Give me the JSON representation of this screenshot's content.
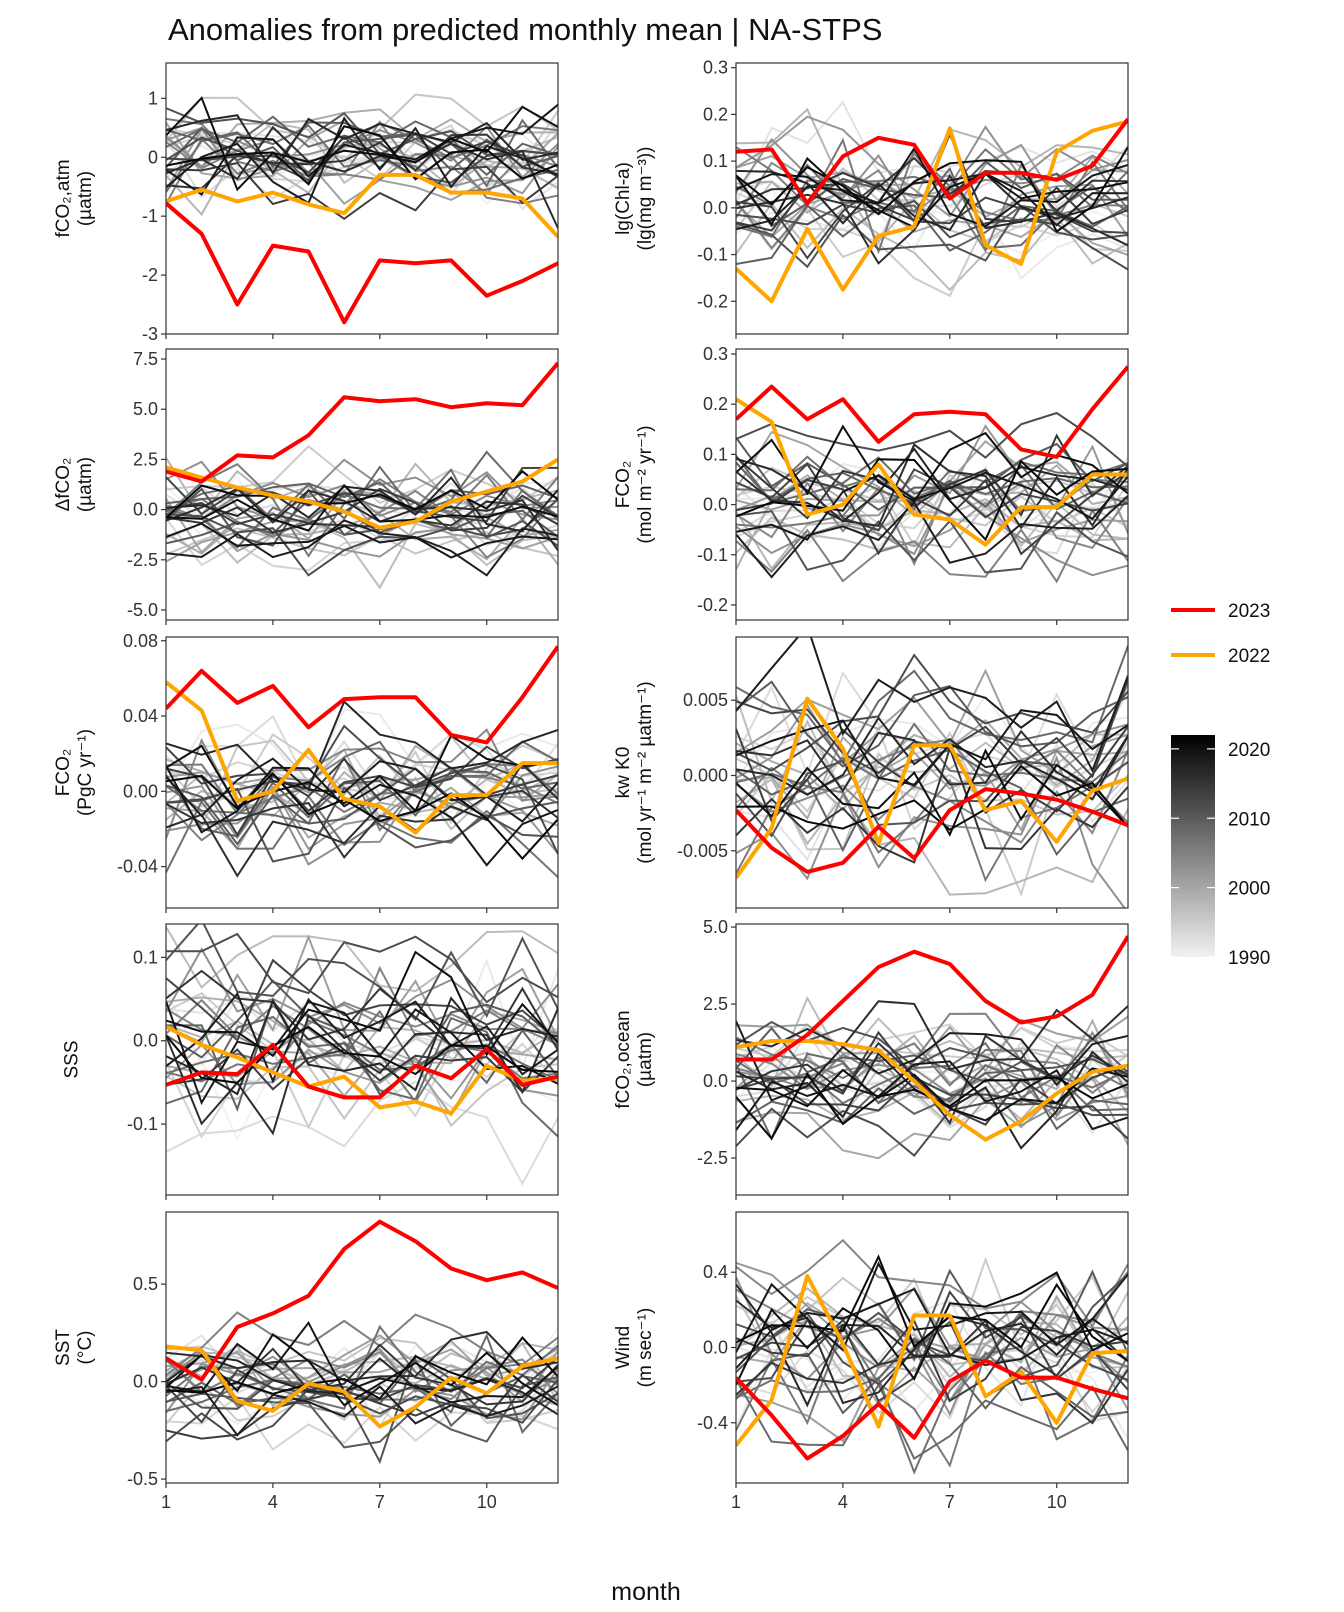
{
  "title": "Anomalies from predicted monthly mean | NA-STPS",
  "x_axis_title": "month",
  "x_ticks": [
    1,
    4,
    7,
    10
  ],
  "legend": {
    "highlight": [
      {
        "name": "2023",
        "color": "#ff0000"
      },
      {
        "name": "2022",
        "color": "#ffa500"
      }
    ],
    "colorbar": {
      "min": 1990,
      "max": 2022,
      "ticks": [
        1990,
        2000,
        2010,
        2020
      ],
      "from_color": "#f2f2f2",
      "to_color": "#000000"
    }
  },
  "chart_data": [
    {
      "type": "line",
      "ylabel": [
        "fCO₂,atm",
        "(µatm)"
      ],
      "ylim": [
        -3.0,
        1.6
      ],
      "yticks": [
        -3,
        -2,
        -1,
        0,
        1
      ],
      "ytick_labels": [
        "-3",
        "-2",
        "-1",
        "0",
        "1"
      ],
      "x": [
        1,
        2,
        3,
        4,
        5,
        6,
        7,
        8,
        9,
        10,
        11,
        12
      ],
      "series": [
        {
          "name": "2023",
          "values": [
            -0.78,
            -1.3,
            -2.5,
            -1.5,
            -1.6,
            -2.8,
            -1.75,
            -1.8,
            -1.75,
            -2.35,
            -2.1,
            -1.8
          ]
        },
        {
          "name": "2022",
          "values": [
            -0.75,
            -0.55,
            -0.75,
            -0.6,
            -0.8,
            -0.95,
            -0.3,
            -0.3,
            -0.6,
            -0.6,
            -0.7,
            -1.35
          ]
        }
      ],
      "background": {
        "years": [
          1990,
          2021
        ],
        "sd": 0.6,
        "trend": 0.0
      }
    },
    {
      "type": "line",
      "ylabel": [
        "lg(Chl-a)",
        "(lg(mg m⁻³))"
      ],
      "ylim": [
        -0.27,
        0.31
      ],
      "yticks": [
        -0.2,
        -0.1,
        0.0,
        0.1,
        0.2,
        0.3
      ],
      "ytick_labels": [
        "-0.2",
        "-0.1",
        "0.0",
        "0.1",
        "0.2",
        "0.3"
      ],
      "x": [
        1,
        2,
        3,
        4,
        5,
        6,
        7,
        8,
        9,
        10,
        11,
        12
      ],
      "series": [
        {
          "name": "2023",
          "values": [
            0.12,
            0.125,
            0.01,
            0.11,
            0.15,
            0.135,
            0.02,
            0.075,
            0.075,
            0.06,
            0.09,
            0.19
          ]
        },
        {
          "name": "2022",
          "values": [
            -0.13,
            -0.2,
            -0.045,
            -0.175,
            -0.06,
            -0.04,
            0.17,
            -0.08,
            -0.12,
            0.12,
            0.165,
            0.185
          ]
        }
      ],
      "background": {
        "years": [
          1990,
          2021
        ],
        "sd": 0.09,
        "trend": 0.0
      }
    },
    {
      "type": "line",
      "ylabel": [
        "ΔfCO₂",
        "(µatm)"
      ],
      "ylim": [
        -5.5,
        8.0
      ],
      "yticks": [
        -5.0,
        -2.5,
        0.0,
        2.5,
        5.0,
        7.5
      ],
      "ytick_labels": [
        "-5.0",
        "-2.5",
        "0.0",
        "2.5",
        "5.0",
        "7.5"
      ],
      "x": [
        1,
        2,
        3,
        4,
        5,
        6,
        7,
        8,
        9,
        10,
        11,
        12
      ],
      "series": [
        {
          "name": "2023",
          "values": [
            1.9,
            1.4,
            2.7,
            2.6,
            3.7,
            5.6,
            5.4,
            5.5,
            5.1,
            5.3,
            5.2,
            7.3
          ]
        },
        {
          "name": "2022",
          "values": [
            2.1,
            1.6,
            1.1,
            0.7,
            0.4,
            -0.1,
            -0.9,
            -0.6,
            0.4,
            0.9,
            1.4,
            2.5
          ]
        }
      ],
      "background": {
        "years": [
          1990,
          2021
        ],
        "sd": 1.5,
        "trend": 0.0
      }
    },
    {
      "type": "line",
      "ylabel": [
        "FCO₂",
        "(mol m⁻² yr⁻¹)"
      ],
      "ylim": [
        -0.23,
        0.31
      ],
      "yticks": [
        -0.2,
        -0.1,
        0.0,
        0.1,
        0.2,
        0.3
      ],
      "ytick_labels": [
        "-0.2",
        "-0.1",
        "0.0",
        "0.1",
        "0.2",
        "0.3"
      ],
      "x": [
        1,
        2,
        3,
        4,
        5,
        6,
        7,
        8,
        9,
        10,
        11,
        12
      ],
      "series": [
        {
          "name": "2023",
          "values": [
            0.17,
            0.235,
            0.17,
            0.21,
            0.125,
            0.18,
            0.185,
            0.18,
            0.11,
            0.095,
            0.19,
            0.275
          ]
        },
        {
          "name": "2022",
          "values": [
            0.21,
            0.165,
            -0.02,
            0.0,
            0.08,
            -0.02,
            -0.03,
            -0.08,
            -0.005,
            -0.005,
            0.06,
            0.06
          ]
        }
      ],
      "background": {
        "years": [
          1990,
          2021
        ],
        "sd": 0.08,
        "trend": 0.0
      }
    },
    {
      "type": "line",
      "ylabel": [
        "FCO₂",
        "(PgC yr⁻¹)"
      ],
      "ylim": [
        -0.062,
        0.082
      ],
      "yticks": [
        -0.04,
        0.0,
        0.04,
        0.08
      ],
      "ytick_labels": [
        "-0.04",
        "0.00",
        "0.04",
        "0.08"
      ],
      "x": [
        1,
        2,
        3,
        4,
        5,
        6,
        7,
        8,
        9,
        10,
        11,
        12
      ],
      "series": [
        {
          "name": "2023",
          "values": [
            0.044,
            0.064,
            0.047,
            0.056,
            0.034,
            0.049,
            0.05,
            0.05,
            0.03,
            0.026,
            0.05,
            0.077
          ]
        },
        {
          "name": "2022",
          "values": [
            0.058,
            0.043,
            -0.005,
            0.0,
            0.022,
            -0.004,
            -0.008,
            -0.022,
            -0.002,
            -0.002,
            0.015,
            0.015
          ]
        }
      ],
      "background": {
        "years": [
          1990,
          2021
        ],
        "sd": 0.022,
        "trend": 0.0
      }
    },
    {
      "type": "line",
      "ylabel": [
        "kw K0",
        "(mol yr⁻¹ m⁻² µatm⁻¹)"
      ],
      "ylim": [
        -0.0088,
        0.0092
      ],
      "yticks": [
        -0.005,
        0.0,
        0.005
      ],
      "ytick_labels": [
        "-0.005",
        "0.000",
        "0.005"
      ],
      "x": [
        1,
        2,
        3,
        4,
        5,
        6,
        7,
        8,
        9,
        10,
        11,
        12
      ],
      "series": [
        {
          "name": "2023",
          "values": [
            -0.0023,
            -0.0048,
            -0.0064,
            -0.0058,
            -0.0034,
            -0.0055,
            -0.0023,
            -0.0009,
            -0.0012,
            -0.0016,
            -0.0024,
            -0.0033
          ]
        },
        {
          "name": "2022",
          "values": [
            -0.0068,
            -0.0035,
            0.0051,
            0.0018,
            -0.0045,
            0.002,
            0.002,
            -0.0023,
            -0.0017,
            -0.0044,
            -0.001,
            -0.0002
          ]
        }
      ],
      "background": {
        "years": [
          1990,
          2021
        ],
        "sd": 0.0035,
        "trend": 0.0
      }
    },
    {
      "type": "line",
      "ylabel": [
        "SSS"
      ],
      "ylim": [
        -0.185,
        0.14
      ],
      "yticks": [
        -0.1,
        0.0,
        0.1
      ],
      "ytick_labels": [
        "-0.1",
        "0.0",
        "0.1"
      ],
      "x": [
        1,
        2,
        3,
        4,
        5,
        6,
        7,
        8,
        9,
        10,
        11,
        12
      ],
      "series": [
        {
          "name": "2023",
          "values": [
            -0.053,
            -0.038,
            -0.04,
            -0.005,
            -0.055,
            -0.068,
            -0.068,
            -0.03,
            -0.045,
            -0.01,
            -0.053,
            -0.043
          ]
        },
        {
          "name": "2022",
          "values": [
            0.017,
            -0.005,
            -0.02,
            -0.038,
            -0.055,
            -0.043,
            -0.08,
            -0.073,
            -0.087,
            -0.03,
            -0.048,
            -0.045
          ]
        }
      ],
      "background": {
        "years": [
          1990,
          2021
        ],
        "sd": 0.06,
        "trend": 0.0
      }
    },
    {
      "type": "line",
      "ylabel": [
        "fCO₂,ocean",
        "(µatm)"
      ],
      "ylim": [
        -3.7,
        5.1
      ],
      "yticks": [
        -2.5,
        0.0,
        2.5,
        5.0
      ],
      "ytick_labels": [
        "-2.5",
        "0.0",
        "2.5",
        "5.0"
      ],
      "x": [
        1,
        2,
        3,
        4,
        5,
        6,
        7,
        8,
        9,
        10,
        11,
        12
      ],
      "series": [
        {
          "name": "2023",
          "values": [
            0.7,
            0.7,
            1.5,
            2.6,
            3.7,
            4.2,
            3.8,
            2.6,
            1.9,
            2.1,
            2.8,
            4.7
          ]
        },
        {
          "name": "2022",
          "values": [
            1.1,
            1.3,
            1.3,
            1.2,
            1.0,
            0.0,
            -1.1,
            -1.9,
            -1.3,
            -0.4,
            0.3,
            0.5
          ]
        }
      ],
      "background": {
        "years": [
          1990,
          2021
        ],
        "sd": 1.2,
        "trend": 0.0
      }
    },
    {
      "type": "line",
      "ylabel": [
        "SST",
        "(°C)"
      ],
      "ylim": [
        -0.52,
        0.87
      ],
      "yticks": [
        -0.5,
        0.0,
        0.5
      ],
      "ytick_labels": [
        "-0.5",
        "0.0",
        "0.5"
      ],
      "x": [
        1,
        2,
        3,
        4,
        5,
        6,
        7,
        8,
        9,
        10,
        11,
        12
      ],
      "series": [
        {
          "name": "2023",
          "values": [
            0.12,
            0.01,
            0.28,
            0.35,
            0.44,
            0.68,
            0.82,
            0.72,
            0.58,
            0.52,
            0.56,
            0.48
          ]
        },
        {
          "name": "2022",
          "values": [
            0.18,
            0.16,
            -0.1,
            -0.15,
            -0.01,
            -0.05,
            -0.23,
            -0.13,
            0.02,
            -0.06,
            0.08,
            0.12
          ]
        }
      ],
      "background": {
        "years": [
          1990,
          2021
        ],
        "sd": 0.18,
        "trend": 0.0
      }
    },
    {
      "type": "line",
      "ylabel": [
        "Wind",
        "(m sec⁻¹)"
      ],
      "ylim": [
        -0.72,
        0.72
      ],
      "yticks": [
        -0.4,
        0.0,
        0.4
      ],
      "ytick_labels": [
        "-0.4",
        "0.0",
        "0.4"
      ],
      "x": [
        1,
        2,
        3,
        4,
        5,
        6,
        7,
        8,
        9,
        10,
        11,
        12
      ],
      "series": [
        {
          "name": "2023",
          "values": [
            -0.16,
            -0.36,
            -0.59,
            -0.47,
            -0.3,
            -0.48,
            -0.18,
            -0.07,
            -0.16,
            -0.16,
            -0.22,
            -0.27
          ]
        },
        {
          "name": "2022",
          "values": [
            -0.52,
            -0.28,
            0.38,
            0.02,
            -0.42,
            0.17,
            0.17,
            -0.26,
            -0.13,
            -0.4,
            -0.03,
            -0.02
          ]
        }
      ],
      "background": {
        "years": [
          1990,
          2021
        ],
        "sd": 0.28,
        "trend": 0.0
      }
    }
  ]
}
